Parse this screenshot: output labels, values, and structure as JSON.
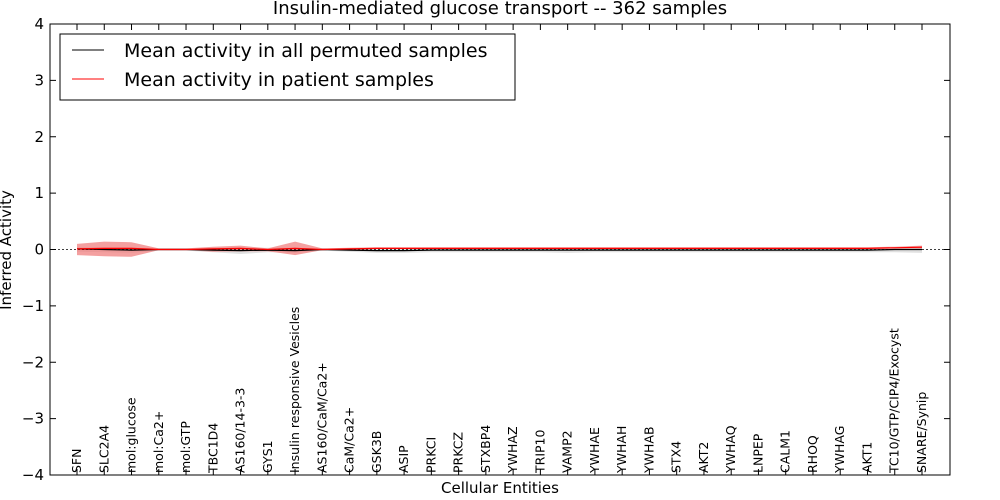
{
  "chart_data": {
    "type": "line",
    "title": "Insulin-mediated glucose transport -- 362 samples",
    "xlabel": "Cellular Entities",
    "ylabel": "Inferred Activity",
    "ylim": [
      -4,
      4
    ],
    "yticks": [
      -4,
      -3,
      -2,
      -1,
      0,
      1,
      2,
      3,
      4
    ],
    "ytick_labels": [
      "−4",
      "−3",
      "−2",
      "−1",
      "0",
      "1",
      "2",
      "3",
      "4"
    ],
    "grid": false,
    "legend_position": "top-left",
    "categories": [
      "SFN",
      "SLC2A4",
      "mol:glucose",
      "mol:Ca2+",
      "mol:GTP",
      "TBC1D4",
      "AS160/14-3-3",
      "GYS1",
      "Insulin responsive Vesicles",
      "AS160/CaM/Ca2+",
      "CaM/Ca2+",
      "GSK3B",
      "ASIP",
      "PRKCI",
      "PRKCZ",
      "STXBP4",
      "YWHAZ",
      "TRIP10",
      "VAMP2",
      "YWHAE",
      "YWHAH",
      "YWHAB",
      "STX4",
      "AKT2",
      "YWHAQ",
      "LNPEP",
      "CALM1",
      "RHOQ",
      "YWHAG",
      "AKT1",
      "TC10/GTP/CIP4/Exocyst",
      "SNARE/Synip"
    ],
    "series": [
      {
        "name": "Mean activity in all permuted samples",
        "color": "#000000",
        "values": [
          0.01,
          0.0,
          -0.01,
          0.0,
          0.0,
          -0.01,
          -0.02,
          -0.01,
          -0.02,
          0.0,
          -0.01,
          -0.02,
          -0.02,
          -0.01,
          -0.01,
          -0.01,
          -0.01,
          -0.01,
          -0.01,
          -0.01,
          -0.01,
          -0.01,
          -0.01,
          -0.01,
          -0.01,
          -0.01,
          -0.01,
          -0.01,
          -0.01,
          -0.01,
          0.0,
          0.0
        ],
        "band_low": [
          -0.04,
          -0.05,
          -0.06,
          -0.02,
          -0.02,
          -0.05,
          -0.08,
          -0.05,
          -0.06,
          -0.02,
          -0.04,
          -0.06,
          -0.06,
          -0.05,
          -0.05,
          -0.05,
          -0.05,
          -0.05,
          -0.06,
          -0.05,
          -0.05,
          -0.05,
          -0.05,
          -0.05,
          -0.05,
          -0.05,
          -0.05,
          -0.05,
          -0.05,
          -0.05,
          -0.05,
          -0.06
        ],
        "band_high": [
          0.04,
          0.04,
          0.04,
          0.02,
          0.02,
          0.03,
          0.03,
          0.03,
          0.03,
          0.02,
          0.02,
          0.02,
          0.02,
          0.03,
          0.03,
          0.03,
          0.03,
          0.03,
          0.03,
          0.03,
          0.03,
          0.03,
          0.03,
          0.03,
          0.03,
          0.03,
          0.03,
          0.03,
          0.03,
          0.03,
          0.04,
          0.05
        ]
      },
      {
        "name": "Mean activity in patient samples",
        "color": "#ff0000",
        "fill": "#f08080",
        "values": [
          0.01,
          0.02,
          0.02,
          0.0,
          0.0,
          0.01,
          0.02,
          0.0,
          0.02,
          0.0,
          0.01,
          0.02,
          0.02,
          0.02,
          0.02,
          0.02,
          0.02,
          0.02,
          0.02,
          0.02,
          0.02,
          0.02,
          0.02,
          0.02,
          0.02,
          0.02,
          0.02,
          0.02,
          0.02,
          0.02,
          0.03,
          0.04
        ],
        "band_low": [
          -0.1,
          -0.12,
          -0.13,
          -0.01,
          -0.01,
          -0.04,
          -0.03,
          -0.03,
          -0.1,
          -0.01,
          0.0,
          0.01,
          0.01,
          0.01,
          0.01,
          0.01,
          0.01,
          0.01,
          0.01,
          0.01,
          0.01,
          0.01,
          0.01,
          0.01,
          0.01,
          0.01,
          0.01,
          0.01,
          0.01,
          0.01,
          0.02,
          0.02
        ],
        "band_high": [
          0.1,
          0.14,
          0.13,
          0.02,
          0.02,
          0.05,
          0.07,
          0.02,
          0.14,
          0.02,
          0.03,
          0.04,
          0.04,
          0.04,
          0.04,
          0.04,
          0.04,
          0.04,
          0.04,
          0.04,
          0.04,
          0.04,
          0.04,
          0.04,
          0.04,
          0.04,
          0.04,
          0.04,
          0.04,
          0.04,
          0.05,
          0.07
        ]
      }
    ],
    "colors": {
      "band_gray": "#d3d3d3",
      "zero_line": "#000000"
    }
  }
}
